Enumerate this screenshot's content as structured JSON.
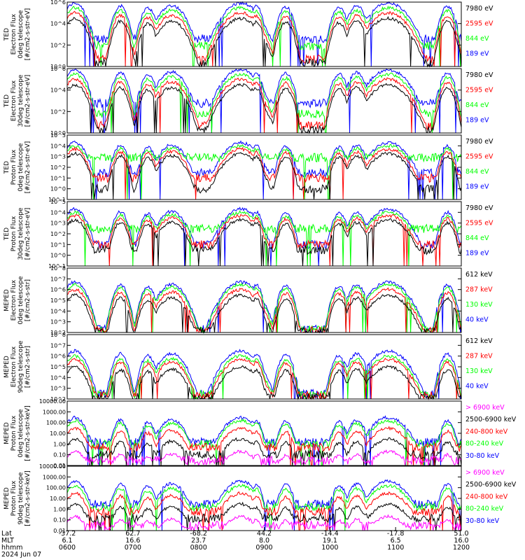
{
  "colors": {
    "blue": "#0000ff",
    "red": "#ff0000",
    "green": "#00ff00",
    "black": "#000000",
    "magenta": "#ff00ff"
  },
  "chart_data": [
    {
      "type": "line",
      "ylabel": [
        "TED",
        "Electron Flux",
        "0deg telescope",
        "[#/cm2-s-str-eV]"
      ],
      "ylim": [
        1,
        1000000
      ],
      "log": true,
      "yticks": [
        "10^0",
        "10^2",
        "10^4",
        "10^6"
      ],
      "legend": [
        {
          "label": "7980 eV",
          "color": "#000000"
        },
        {
          "label": "2595 eV",
          "color": "#ff0000"
        },
        {
          "label": "844 eV",
          "color": "#00ff00"
        },
        {
          "label": "189 eV",
          "color": "#0000ff"
        }
      ],
      "series": [
        {
          "color": "#0000ff",
          "base": 400,
          "peak": 800000
        },
        {
          "color": "#00ff00",
          "base": 80,
          "peak": 300000
        },
        {
          "color": "#ff0000",
          "base": 5,
          "peak": 100000
        },
        {
          "color": "#000000",
          "base": 2,
          "peak": 30000
        }
      ]
    },
    {
      "type": "line",
      "ylabel": [
        "TED",
        "Electron Flux",
        "30deg telescope",
        "[#/cm2-s-str-eV]"
      ],
      "ylim": [
        1,
        1000000
      ],
      "log": true,
      "yticks": [
        "10^0",
        "10^2",
        "10^4",
        "10^6"
      ],
      "legend": [
        {
          "label": "7980 eV",
          "color": "#000000"
        },
        {
          "label": "2595 eV",
          "color": "#ff0000"
        },
        {
          "label": "844 eV",
          "color": "#00ff00"
        },
        {
          "label": "189 eV",
          "color": "#0000ff"
        }
      ],
      "series": [
        {
          "color": "#0000ff",
          "base": 600,
          "peak": 800000
        },
        {
          "color": "#00ff00",
          "base": 60,
          "peak": 300000
        },
        {
          "color": "#ff0000",
          "base": 5,
          "peak": 100000
        },
        {
          "color": "#000000",
          "base": 2,
          "peak": 30000
        }
      ]
    },
    {
      "type": "line",
      "ylabel": [
        "TED",
        "Proton Flux",
        "0deg telescope",
        "[#/cm2-s-str-eV]"
      ],
      "ylim": [
        0.1,
        100000
      ],
      "log": true,
      "yticks": [
        "10^-1",
        "10^0",
        "10^1",
        "10^2",
        "10^3",
        "10^4",
        "10^5"
      ],
      "legend": [
        {
          "label": "7980 eV",
          "color": "#000000"
        },
        {
          "label": "2595 eV",
          "color": "#ff0000"
        },
        {
          "label": "844 eV",
          "color": "#00ff00"
        },
        {
          "label": "189 eV",
          "color": "#0000ff"
        }
      ],
      "series": [
        {
          "color": "#0000ff",
          "base": 30,
          "peak": 20000
        },
        {
          "color": "#00ff00",
          "base": 800,
          "peak": 10000
        },
        {
          "color": "#ff0000",
          "base": 10,
          "peak": 5000
        },
        {
          "color": "#000000",
          "base": 1,
          "peak": 2000
        }
      ]
    },
    {
      "type": "line",
      "ylabel": [
        "TED",
        "Proton Flux",
        "30deg telescope",
        "[#/cm2-s-str-eV]"
      ],
      "ylim": [
        0.1,
        100000
      ],
      "log": true,
      "yticks": [
        "10^-1",
        "10^0",
        "10^1",
        "10^2",
        "10^3",
        "10^4",
        "10^5"
      ],
      "legend": [
        {
          "label": "7980 eV",
          "color": "#000000"
        },
        {
          "label": "2595 eV",
          "color": "#ff0000"
        },
        {
          "label": "844 eV",
          "color": "#00ff00"
        },
        {
          "label": "189 eV",
          "color": "#0000ff"
        }
      ],
      "series": [
        {
          "color": "#0000ff",
          "base": 10,
          "peak": 20000
        },
        {
          "color": "#00ff00",
          "base": 300,
          "peak": 10000
        },
        {
          "color": "#ff0000",
          "base": 10,
          "peak": 5000
        },
        {
          "color": "#000000",
          "base": 3,
          "peak": 2000
        }
      ]
    },
    {
      "type": "line",
      "ylabel": [
        "MEPED",
        "Electron Flux",
        "0deg telescope",
        "[#/cm2-s-str]"
      ],
      "ylim": [
        100,
        100000000
      ],
      "log": true,
      "yticks": [
        "10^2",
        "10^3",
        "10^4",
        "10^5",
        "10^6",
        "10^7",
        "10^8"
      ],
      "legend": [
        {
          "label": "612 keV",
          "color": "#000000"
        },
        {
          "label": "287 keV",
          "color": "#ff0000"
        },
        {
          "label": "130 keV",
          "color": "#00ff00"
        },
        {
          "label": "40 keV",
          "color": "#0000ff"
        }
      ],
      "series": [
        {
          "color": "#0000ff",
          "base": 200,
          "peak": 5000000
        },
        {
          "color": "#00ff00",
          "base": 180,
          "peak": 3000000
        },
        {
          "color": "#ff0000",
          "base": 150,
          "peak": 1000000
        },
        {
          "color": "#000000",
          "base": 130,
          "peak": 300000
        }
      ]
    },
    {
      "type": "line",
      "ylabel": [
        "MEPED",
        "Electron Flux",
        "90deg telescope",
        "[#/cm2-s-str]"
      ],
      "ylim": [
        100,
        100000000
      ],
      "log": true,
      "yticks": [
        "10^2",
        "10^3",
        "10^4",
        "10^5",
        "10^6",
        "10^7",
        "10^8"
      ],
      "legend": [
        {
          "label": "612 keV",
          "color": "#000000"
        },
        {
          "label": "287 keV",
          "color": "#ff0000"
        },
        {
          "label": "130 keV",
          "color": "#00ff00"
        },
        {
          "label": "40 keV",
          "color": "#0000ff"
        }
      ],
      "series": [
        {
          "color": "#0000ff",
          "base": 300,
          "peak": 3000000
        },
        {
          "color": "#00ff00",
          "base": 250,
          "peak": 1000000
        },
        {
          "color": "#ff0000",
          "base": 200,
          "peak": 500000
        },
        {
          "color": "#000000",
          "base": 120,
          "peak": 100000
        }
      ]
    },
    {
      "type": "line",
      "ylabel": [
        "MEPED",
        "Proton Flux",
        "0deg telescope",
        "[#/cm2-s-str-keV]"
      ],
      "ylim": [
        0.01,
        10000
      ],
      "log": true,
      "yticks": [
        "0.01",
        "0.10",
        "1.00",
        "10.00",
        "100.00",
        "1000.00",
        "10000.00"
      ],
      "legend": [
        {
          "label": "> 6900 keV",
          "color": "#ff00ff"
        },
        {
          "label": "2500-6900 keV",
          "color": "#000000"
        },
        {
          "label": "240-800 keV",
          "color": "#ff0000"
        },
        {
          "label": "80-240 keV",
          "color": "#00ff00"
        },
        {
          "label": "30-80 keV",
          "color": "#0000ff"
        }
      ],
      "series": [
        {
          "color": "#0000ff",
          "base": 1.5,
          "peak": 300
        },
        {
          "color": "#00ff00",
          "base": 1.0,
          "peak": 150
        },
        {
          "color": "#ff0000",
          "base": 0.5,
          "peak": 30
        },
        {
          "color": "#000000",
          "base": 0.1,
          "peak": 3
        },
        {
          "color": "#ff00ff",
          "base": 0.03,
          "peak": 0.2
        }
      ]
    },
    {
      "type": "line",
      "ylabel": [
        "MEPED",
        "Proton Flux",
        "90deg telescope",
        "[#/cm2-s-str-keV]"
      ],
      "ylim": [
        0.01,
        10000
      ],
      "log": true,
      "yticks": [
        "0.01",
        "0.10",
        "1.00",
        "10.00",
        "100.00",
        "1000.00",
        "10000.00"
      ],
      "legend": [
        {
          "label": "> 6900 keV",
          "color": "#ff00ff"
        },
        {
          "label": "2500-6900 keV",
          "color": "#000000"
        },
        {
          "label": "240-800 keV",
          "color": "#ff0000"
        },
        {
          "label": "80-240 keV",
          "color": "#00ff00"
        },
        {
          "label": "30-80 keV",
          "color": "#0000ff"
        }
      ],
      "series": [
        {
          "color": "#0000ff",
          "base": 3,
          "peak": 400
        },
        {
          "color": "#00ff00",
          "base": 1.5,
          "peak": 150
        },
        {
          "color": "#ff0000",
          "base": 0.6,
          "peak": 30
        },
        {
          "color": "#000000",
          "base": 0.15,
          "peak": 3
        },
        {
          "color": "#ff00ff",
          "base": 0.03,
          "peak": 0.2
        }
      ]
    }
  ],
  "xaxis": {
    "row_labels": [
      "Lat",
      "MLT",
      "hhmm",
      "2024 Jun 07"
    ],
    "ticks": [
      {
        "lat": "-37.2",
        "mlt": "6.1",
        "hhmm": "0600"
      },
      {
        "lat": "62.7",
        "mlt": "16.6",
        "hhmm": "0700"
      },
      {
        "lat": "-68.2",
        "mlt": "23.7",
        "hhmm": "0800"
      },
      {
        "lat": "44.2",
        "mlt": "8.0",
        "hhmm": "0900"
      },
      {
        "lat": "-14.4",
        "mlt": "19.1",
        "hhmm": "1000"
      },
      {
        "lat": "-17.8",
        "mlt": "6.5",
        "hhmm": "1100"
      },
      {
        "lat": "51.0",
        "mlt": "16.0",
        "hhmm": "1200"
      }
    ]
  }
}
